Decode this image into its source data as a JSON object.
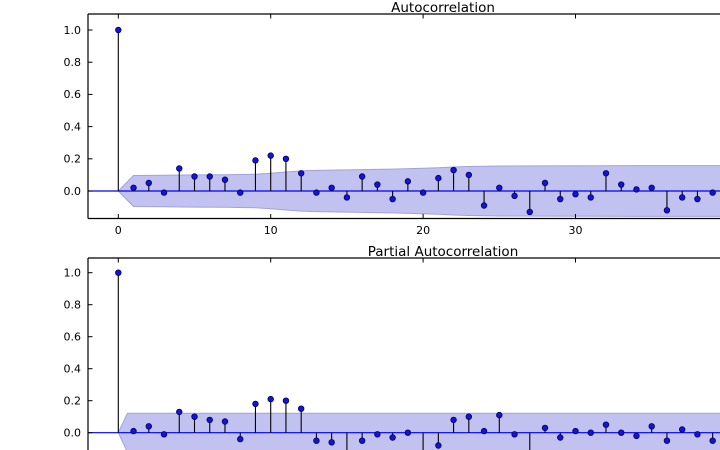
{
  "colors": {
    "marker_fill": "#1414d2",
    "marker_edge": "#000066",
    "stem": "#000000",
    "zero_line": "#0000ff",
    "band_fill": "#c2c2f1",
    "band_edge": "#a2a2dc",
    "axis": "#000000",
    "text": "#000000",
    "background": "#ffffff"
  },
  "chart_data": [
    {
      "type": "stem",
      "title": "Autocorrelation",
      "xlabel": "",
      "ylabel": "",
      "x": [
        0,
        1,
        2,
        3,
        4,
        5,
        6,
        7,
        8,
        9,
        10,
        11,
        12,
        13,
        14,
        15,
        16,
        17,
        18,
        19,
        20,
        21,
        22,
        23,
        24,
        25,
        26,
        27,
        28,
        29,
        30,
        31,
        32,
        33,
        34,
        35,
        36,
        37,
        38,
        39
      ],
      "values": [
        1.0,
        0.02,
        0.05,
        -0.01,
        0.14,
        0.09,
        0.09,
        0.07,
        -0.01,
        0.19,
        0.22,
        0.2,
        0.11,
        -0.01,
        0.02,
        -0.04,
        0.09,
        0.04,
        -0.05,
        0.06,
        -0.01,
        0.08,
        0.13,
        0.1,
        -0.09,
        0.02,
        -0.03,
        -0.13,
        0.05,
        -0.05,
        -0.02,
        -0.04,
        0.11,
        0.04,
        0.01,
        0.02,
        -0.12,
        -0.04,
        -0.05,
        -0.01
      ],
      "confidence_band": {
        "shape": "cone",
        "halfwidth_by_lag": [
          [
            0,
            0
          ],
          [
            1,
            0.096
          ],
          [
            3,
            0.098
          ],
          [
            5,
            0.1
          ],
          [
            7,
            0.101
          ],
          [
            9,
            0.104
          ],
          [
            10,
            0.11
          ],
          [
            11,
            0.118
          ],
          [
            12,
            0.125
          ],
          [
            13,
            0.128
          ],
          [
            14,
            0.13
          ],
          [
            16,
            0.133
          ],
          [
            18,
            0.136
          ],
          [
            20,
            0.141
          ],
          [
            21,
            0.145
          ],
          [
            22,
            0.149
          ],
          [
            23,
            0.152
          ],
          [
            24,
            0.154
          ],
          [
            25,
            0.155
          ],
          [
            28,
            0.156
          ],
          [
            32,
            0.157
          ],
          [
            38,
            0.158
          ],
          [
            45,
            0.158
          ]
        ]
      },
      "xticks": [
        0,
        10,
        20,
        30
      ],
      "yticks": [
        1.0,
        0.8,
        0.6,
        0.4,
        0.2,
        0.0
      ],
      "ytick_labels": [
        "1.0",
        "0.8",
        "0.6",
        "0.4",
        "0.2",
        "0.0"
      ],
      "xlim": [
        -2,
        44.6
      ],
      "ylim": [
        -0.17,
        1.1
      ],
      "grid": false,
      "legend": null
    },
    {
      "type": "stem",
      "title": "Partial Autocorrelation",
      "xlabel": "",
      "ylabel": "",
      "x": [
        0,
        1,
        2,
        3,
        4,
        5,
        6,
        7,
        8,
        9,
        10,
        11,
        12,
        13,
        14,
        15,
        16,
        17,
        18,
        19,
        20,
        21,
        22,
        23,
        24,
        25,
        26,
        27,
        28,
        29,
        30,
        31,
        32,
        33,
        34,
        35,
        36,
        37,
        38,
        39
      ],
      "values": [
        1.0,
        0.01,
        0.04,
        -0.01,
        0.13,
        0.1,
        0.08,
        0.07,
        -0.04,
        0.18,
        0.21,
        0.2,
        0.15,
        -0.05,
        -0.06,
        -0.15,
        -0.05,
        -0.01,
        -0.03,
        0.0,
        -0.14,
        -0.08,
        0.08,
        0.1,
        0.01,
        0.11,
        -0.01,
        -0.15,
        0.03,
        -0.03,
        0.01,
        0.0,
        0.05,
        0.0,
        -0.02,
        0.04,
        -0.05,
        0.02,
        -0.01,
        -0.05
      ],
      "confidence_band": {
        "shape": "constant",
        "halfwidth_by_lag": [
          [
            0,
            0
          ],
          [
            0.6,
            0.121
          ],
          [
            45,
            0.121
          ]
        ]
      },
      "xticks": [],
      "yticks": [
        1.0,
        0.8,
        0.6,
        0.4,
        0.2,
        0.0
      ],
      "ytick_labels": [
        "1.0",
        "0.8",
        "0.6",
        "0.4",
        "0.2",
        "0.0"
      ],
      "xlim": [
        -2,
        44.6
      ],
      "ylim": [
        -0.17,
        1.09
      ],
      "grid": false,
      "legend": null,
      "clipped_bottom": true
    }
  ]
}
